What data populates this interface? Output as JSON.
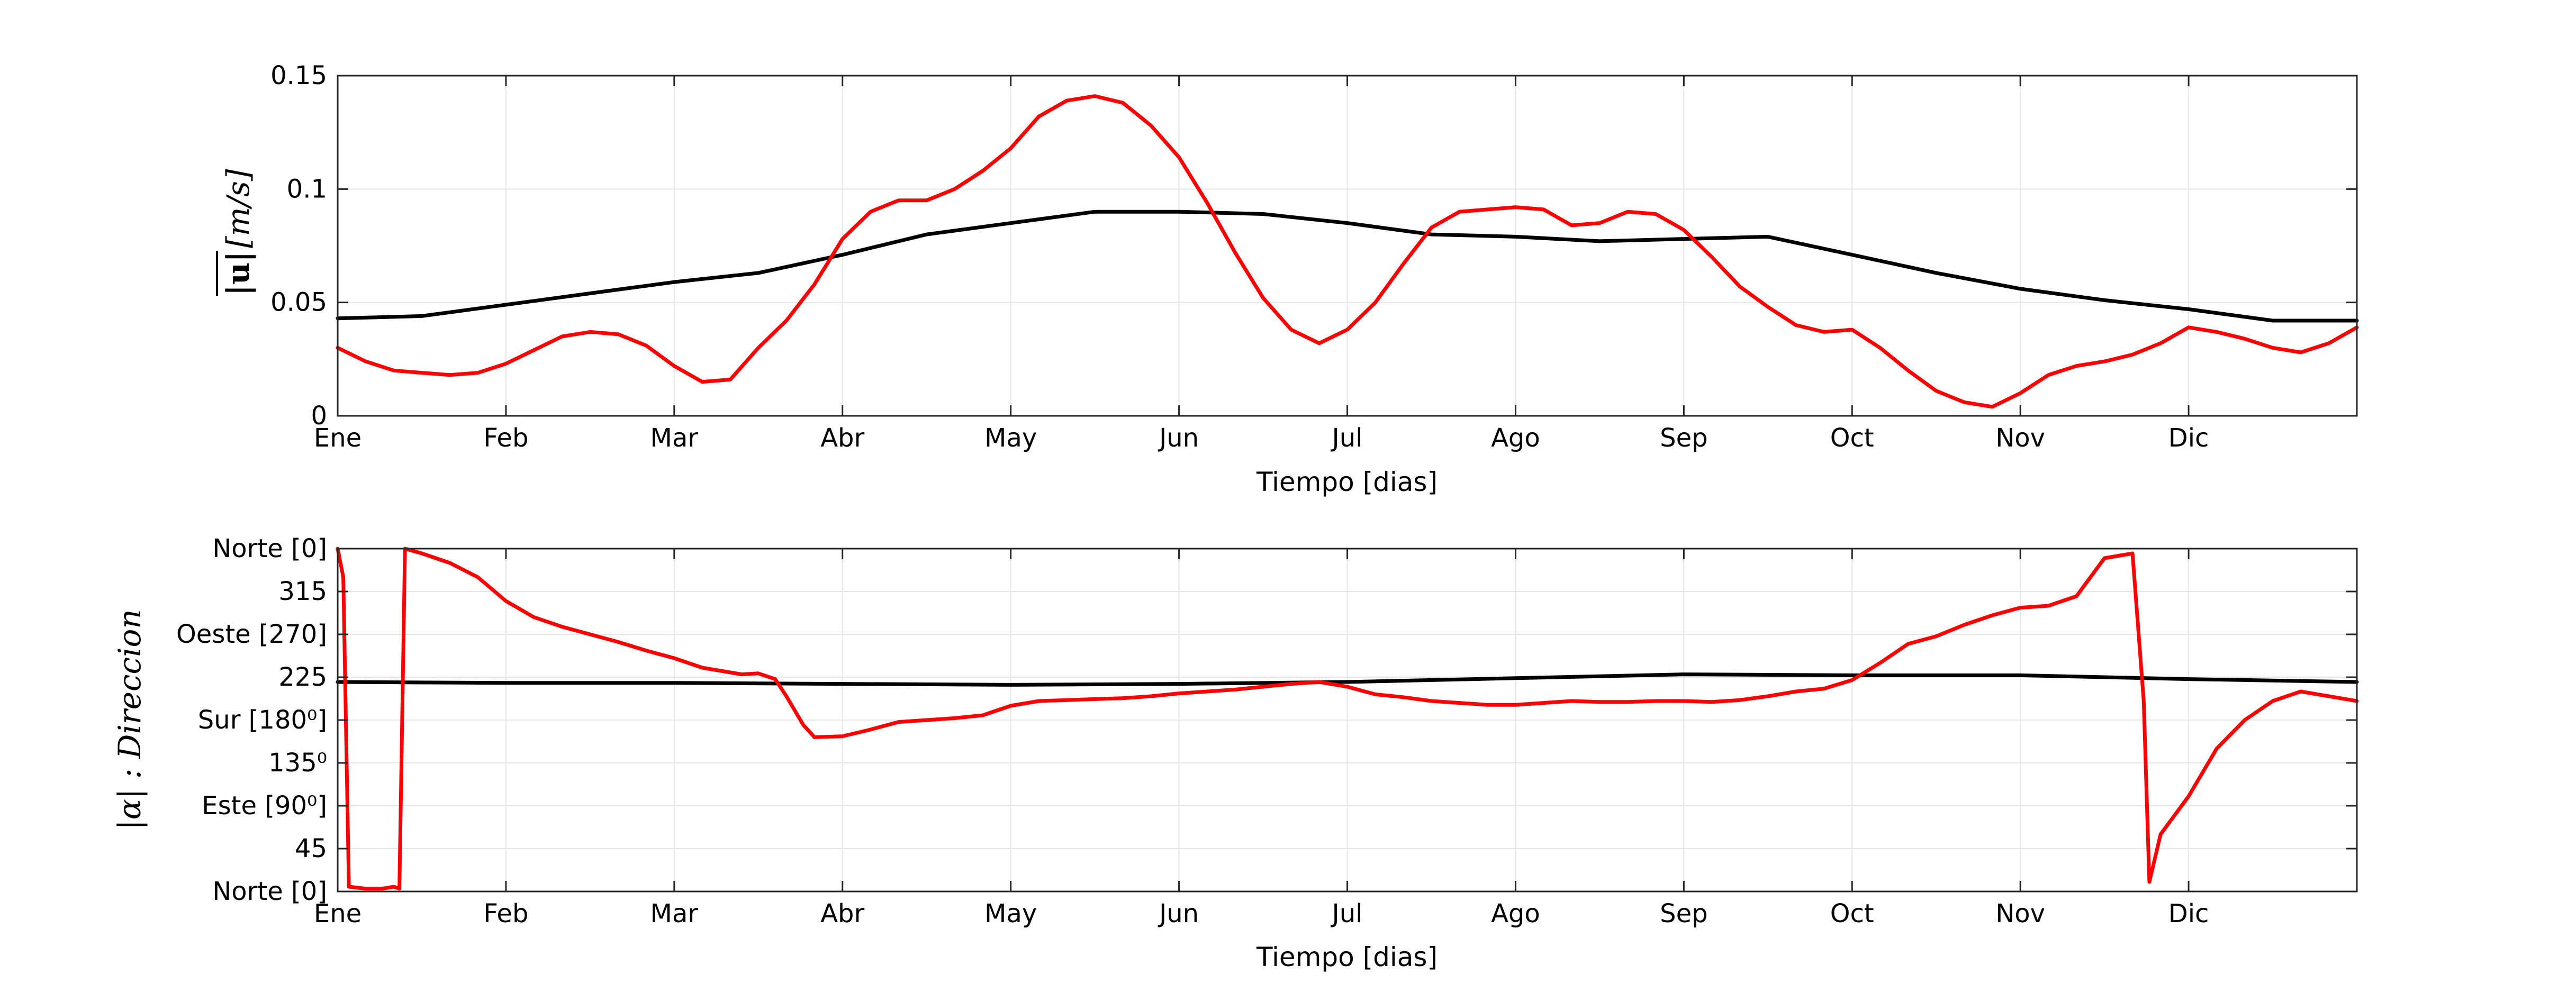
{
  "chart_data": [
    {
      "type": "line",
      "xlabel": "Tiempo [dias]",
      "ylabel": "|u|[m/s]",
      "x_ticks": [
        "Ene",
        "Feb",
        "Mar",
        "Abr",
        "May",
        "Jun",
        "Jul",
        "Ago",
        "Sep",
        "Oct",
        "Nov",
        "Dic"
      ],
      "y_ticks": [
        "0",
        "0.05",
        "0.1",
        "0.15"
      ],
      "ylim": [
        0,
        0.15
      ],
      "xlim": [
        0,
        360
      ],
      "grid": true,
      "series": [
        {
          "color": "#000000",
          "x": [
            0,
            15,
            30,
            45,
            60,
            75,
            90,
            105,
            120,
            135,
            150,
            165,
            180,
            195,
            210,
            225,
            240,
            255,
            270,
            285,
            300,
            315,
            330,
            345,
            360
          ],
          "y": [
            0.043,
            0.044,
            0.049,
            0.054,
            0.059,
            0.063,
            0.071,
            0.08,
            0.085,
            0.09,
            0.09,
            0.089,
            0.085,
            0.08,
            0.079,
            0.077,
            0.078,
            0.079,
            0.071,
            0.063,
            0.056,
            0.051,
            0.047,
            0.042,
            0.042
          ]
        },
        {
          "color": "#ff0000",
          "x": [
            0,
            5,
            10,
            15,
            20,
            25,
            30,
            35,
            40,
            45,
            50,
            55,
            60,
            65,
            70,
            75,
            80,
            85,
            90,
            95,
            100,
            105,
            110,
            115,
            120,
            125,
            130,
            135,
            140,
            145,
            150,
            155,
            160,
            165,
            170,
            175,
            180,
            185,
            190,
            195,
            200,
            205,
            210,
            215,
            220,
            225,
            230,
            235,
            240,
            245,
            250,
            255,
            260,
            265,
            270,
            275,
            280,
            285,
            290,
            295,
            300,
            305,
            310,
            315,
            320,
            325,
            330,
            335,
            340,
            345,
            350,
            355,
            360
          ],
          "y": [
            0.03,
            0.024,
            0.02,
            0.019,
            0.018,
            0.019,
            0.023,
            0.029,
            0.035,
            0.037,
            0.036,
            0.031,
            0.022,
            0.015,
            0.016,
            0.03,
            0.042,
            0.058,
            0.078,
            0.09,
            0.095,
            0.095,
            0.1,
            0.108,
            0.118,
            0.132,
            0.139,
            0.141,
            0.138,
            0.128,
            0.114,
            0.094,
            0.072,
            0.052,
            0.038,
            0.032,
            0.038,
            0.05,
            0.067,
            0.083,
            0.09,
            0.091,
            0.092,
            0.091,
            0.084,
            0.085,
            0.09,
            0.089,
            0.082,
            0.07,
            0.057,
            0.048,
            0.04,
            0.037,
            0.038,
            0.03,
            0.02,
            0.011,
            0.006,
            0.004,
            0.01,
            0.018,
            0.022,
            0.024,
            0.027,
            0.032,
            0.039,
            0.037,
            0.034,
            0.03,
            0.028,
            0.032,
            0.039
          ]
        }
      ]
    },
    {
      "type": "line",
      "xlabel": "Tiempo [dias]",
      "ylabel": "|α| : Direccion",
      "x_ticks": [
        "Ene",
        "Feb",
        "Mar",
        "Abr",
        "May",
        "Jun",
        "Jul",
        "Ago",
        "Sep",
        "Oct",
        "Nov",
        "Dic"
      ],
      "y_ticks": [
        "Norte [0]",
        "45",
        "Este [90⁰]",
        "135⁰",
        "Sur [180⁰]",
        "225",
        "Oeste [270]",
        "315",
        "Norte [0]"
      ],
      "ylim": [
        0,
        360
      ],
      "xlim": [
        0,
        360
      ],
      "grid": true,
      "series": [
        {
          "color": "#000000",
          "x": [
            0,
            30,
            60,
            90,
            120,
            150,
            180,
            210,
            240,
            270,
            300,
            330,
            360
          ],
          "y": [
            220,
            219,
            219,
            218,
            217,
            218,
            220,
            224,
            228,
            227,
            227,
            223,
            220
          ]
        },
        {
          "color": "#ff0000",
          "x": [
            0,
            1,
            2,
            5,
            8,
            10,
            11,
            12,
            15,
            20,
            25,
            30,
            35,
            40,
            45,
            50,
            55,
            60,
            65,
            70,
            72,
            75,
            78,
            80,
            83,
            85,
            90,
            95,
            100,
            105,
            110,
            115,
            120,
            125,
            130,
            135,
            140,
            145,
            150,
            155,
            160,
            165,
            170,
            175,
            180,
            185,
            190,
            195,
            200,
            205,
            210,
            215,
            220,
            225,
            230,
            235,
            240,
            245,
            250,
            255,
            260,
            265,
            270,
            275,
            280,
            285,
            290,
            295,
            300,
            305,
            310,
            315,
            320,
            322,
            323,
            325,
            330,
            335,
            340,
            345,
            350,
            355,
            360
          ],
          "y": [
            360,
            330,
            5,
            3,
            3,
            5,
            3,
            360,
            355,
            345,
            330,
            305,
            288,
            278,
            270,
            262,
            253,
            245,
            235,
            230,
            228,
            229,
            223,
            205,
            175,
            162,
            163,
            170,
            178,
            180,
            182,
            185,
            195,
            200,
            201,
            202,
            203,
            205,
            208,
            210,
            212,
            215,
            218,
            220,
            215,
            207,
            204,
            200,
            198,
            196,
            196,
            198,
            200,
            199,
            199,
            200,
            200,
            199,
            201,
            205,
            210,
            213,
            222,
            240,
            260,
            268,
            280,
            290,
            298,
            300,
            310,
            350,
            355,
            200,
            10,
            60,
            100,
            150,
            180,
            200,
            210,
            205,
            200
          ]
        }
      ]
    }
  ]
}
